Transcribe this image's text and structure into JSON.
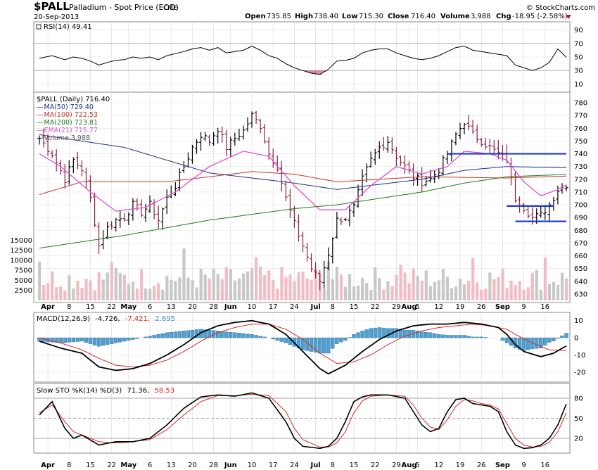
{
  "header": {
    "symbol": "$PALL",
    "name": "Palladium - Spot Price (EOD)",
    "exchange": "CME",
    "date": "20-Sep-2013",
    "watermark": "© StockCharts.com",
    "open_label": "Open",
    "open": "735.85",
    "high_label": "High",
    "high": "738.40",
    "low_label": "Low",
    "low": "715.30",
    "close_label": "Close",
    "close": "716.40",
    "volume_label": "Volume",
    "volume": "3,988",
    "chg_label": "Chg",
    "chg": "-18.95 (-2.58%)"
  },
  "rsi": {
    "label": "RSI(14) 49.41",
    "ticks": [
      "90",
      "70",
      "50",
      "30",
      "10"
    ],
    "tick_values": [
      90,
      70,
      50,
      30,
      10
    ]
  },
  "price": {
    "label": "$PALL (Daily) 716.40",
    "legend": [
      {
        "text": "MA(50) 729.40",
        "color": "#1f2f8f"
      },
      {
        "text": "MA(100) 722.53",
        "color": "#c0392b"
      },
      {
        "text": "MA(200) 723.81",
        "color": "#1e7a1e"
      },
      {
        "text": "EMA(21) 715.77",
        "color": "#e04fd0"
      },
      {
        "text": "Volume 3,988",
        "color": "#555555"
      }
    ],
    "ticks": [
      "780",
      "770",
      "760",
      "750",
      "740",
      "730",
      "720",
      "710",
      "700",
      "690",
      "680",
      "670",
      "660",
      "650",
      "640",
      "630"
    ],
    "tick_values": [
      780,
      770,
      760,
      750,
      740,
      730,
      720,
      710,
      700,
      690,
      680,
      670,
      660,
      650,
      640,
      630
    ],
    "vol_ticks": [
      "15000",
      "12500",
      "10000",
      "7500",
      "5000",
      "2500"
    ],
    "vol_tick_values": [
      15000,
      12500,
      10000,
      7500,
      5000,
      2500
    ]
  },
  "macd": {
    "label_name": "MACD(12,26,9)",
    "macd_value": "-4.726,",
    "signal_value": "-7.421,",
    "hist_value": "2.695",
    "ticks": [
      "10",
      "0",
      "-10",
      "-20"
    ],
    "tick_values": [
      10,
      0,
      -10,
      -20
    ]
  },
  "sto": {
    "label_name": "Slow STO %K(14) %D(3)",
    "k_value": "71.36,",
    "d_value": "58.53",
    "ticks": [
      "80",
      "50",
      "20"
    ],
    "tick_values": [
      80,
      50,
      20
    ]
  },
  "x_axis": {
    "labels": [
      {
        "text": "Apr",
        "bold": true,
        "i": 2
      },
      {
        "text": "8",
        "i": 7
      },
      {
        "text": "15",
        "i": 12
      },
      {
        "text": "22",
        "i": 17
      },
      {
        "text": "May",
        "bold": true,
        "i": 21
      },
      {
        "text": "6",
        "i": 26
      },
      {
        "text": "13",
        "i": 31
      },
      {
        "text": "20",
        "i": 36
      },
      {
        "text": "28",
        "i": 41
      },
      {
        "text": "Jun",
        "bold": true,
        "i": 45
      },
      {
        "text": "10",
        "i": 50
      },
      {
        "text": "17",
        "i": 55
      },
      {
        "text": "24",
        "i": 60
      },
      {
        "text": "Jul",
        "bold": true,
        "i": 65
      },
      {
        "text": "8",
        "i": 69
      },
      {
        "text": "15",
        "i": 74
      },
      {
        "text": "22",
        "i": 79
      },
      {
        "text": "29",
        "i": 84
      },
      {
        "text": "Aug",
        "bold": true,
        "i": 87
      },
      {
        "text": "5",
        "i": 89
      },
      {
        "text": "12",
        "i": 94
      },
      {
        "text": "19",
        "i": 99
      },
      {
        "text": "26",
        "i": 104
      },
      {
        "text": "Sep",
        "bold": true,
        "i": 109
      },
      {
        "text": "9",
        "i": 114
      },
      {
        "text": "16",
        "i": 119
      }
    ]
  },
  "chart_data": {
    "type": "line",
    "title": "$PALL Palladium - Spot Price (EOD) CME",
    "n_bars": 125,
    "price_range": [
      625,
      785
    ],
    "price_key_points": [
      [
        0,
        752
      ],
      [
        3,
        740
      ],
      [
        6,
        720
      ],
      [
        8,
        735
      ],
      [
        10,
        728
      ],
      [
        12,
        705
      ],
      [
        14,
        668
      ],
      [
        16,
        682
      ],
      [
        18,
        688
      ],
      [
        20,
        690
      ],
      [
        22,
        700
      ],
      [
        24,
        694
      ],
      [
        26,
        700
      ],
      [
        28,
        688
      ],
      [
        30,
        705
      ],
      [
        32,
        715
      ],
      [
        34,
        730
      ],
      [
        36,
        745
      ],
      [
        38,
        755
      ],
      [
        40,
        750
      ],
      [
        42,
        760
      ],
      [
        44,
        745
      ],
      [
        46,
        752
      ],
      [
        48,
        758
      ],
      [
        50,
        770
      ],
      [
        52,
        762
      ],
      [
        54,
        740
      ],
      [
        56,
        730
      ],
      [
        58,
        705
      ],
      [
        60,
        685
      ],
      [
        62,
        668
      ],
      [
        64,
        650
      ],
      [
        66,
        640
      ],
      [
        68,
        662
      ],
      [
        70,
        688
      ],
      [
        72,
        690
      ],
      [
        74,
        698
      ],
      [
        76,
        720
      ],
      [
        78,
        735
      ],
      [
        80,
        745
      ],
      [
        82,
        750
      ],
      [
        84,
        738
      ],
      [
        86,
        730
      ],
      [
        88,
        722
      ],
      [
        90,
        718
      ],
      [
        92,
        720
      ],
      [
        94,
        728
      ],
      [
        96,
        740
      ],
      [
        98,
        755
      ],
      [
        100,
        765
      ],
      [
        102,
        755
      ],
      [
        104,
        750
      ],
      [
        106,
        745
      ],
      [
        108,
        740
      ],
      [
        110,
        735
      ],
      [
        112,
        705
      ],
      [
        114,
        698
      ],
      [
        116,
        690
      ],
      [
        118,
        692
      ],
      [
        120,
        700
      ],
      [
        122,
        712
      ],
      [
        124,
        716
      ]
    ],
    "ma50_key_points": [
      [
        0,
        755
      ],
      [
        20,
        745
      ],
      [
        40,
        725
      ],
      [
        60,
        717
      ],
      [
        70,
        712
      ],
      [
        80,
        716
      ],
      [
        90,
        720
      ],
      [
        100,
        727
      ],
      [
        110,
        730
      ],
      [
        124,
        729
      ]
    ],
    "ma100_key_points": [
      [
        0,
        708
      ],
      [
        10,
        718
      ],
      [
        30,
        718
      ],
      [
        50,
        726
      ],
      [
        60,
        724
      ],
      [
        70,
        718
      ],
      [
        80,
        720
      ],
      [
        90,
        722
      ],
      [
        110,
        721
      ],
      [
        124,
        722.5
      ]
    ],
    "ma200_key_points": [
      [
        0,
        666
      ],
      [
        20,
        676
      ],
      [
        40,
        688
      ],
      [
        60,
        697
      ],
      [
        70,
        700
      ],
      [
        80,
        705
      ],
      [
        90,
        710
      ],
      [
        100,
        717
      ],
      [
        110,
        722
      ],
      [
        124,
        723.8
      ]
    ],
    "ema21_key_points": [
      [
        0,
        740
      ],
      [
        5,
        730
      ],
      [
        12,
        710
      ],
      [
        18,
        695
      ],
      [
        25,
        698
      ],
      [
        32,
        710
      ],
      [
        40,
        730
      ],
      [
        48,
        742
      ],
      [
        54,
        738
      ],
      [
        60,
        715
      ],
      [
        66,
        696
      ],
      [
        72,
        696
      ],
      [
        78,
        715
      ],
      [
        84,
        730
      ],
      [
        90,
        724
      ],
      [
        96,
        730
      ],
      [
        100,
        742
      ],
      [
        106,
        740
      ],
      [
        110,
        735
      ],
      [
        114,
        718
      ],
      [
        118,
        707
      ],
      [
        122,
        712
      ],
      [
        124,
        715.8
      ]
    ],
    "horizontal_lines": [
      {
        "y": 740,
        "from": 96,
        "to": 124,
        "color": "#1d3ecf"
      },
      {
        "y": 699,
        "from": 110,
        "to": 121,
        "color": "#1d3ecf"
      },
      {
        "y": 687,
        "from": 112,
        "to": 124,
        "color": "#1d3ecf"
      }
    ],
    "volume_range": [
      0,
      17000
    ],
    "rsi_range": [
      0,
      100
    ],
    "rsi_key_points": [
      [
        0,
        48
      ],
      [
        3,
        52
      ],
      [
        6,
        46
      ],
      [
        8,
        50
      ],
      [
        10,
        48
      ],
      [
        12,
        44
      ],
      [
        14,
        38
      ],
      [
        16,
        42
      ],
      [
        18,
        45
      ],
      [
        20,
        46
      ],
      [
        22,
        50
      ],
      [
        24,
        48
      ],
      [
        26,
        50
      ],
      [
        28,
        46
      ],
      [
        30,
        52
      ],
      [
        32,
        55
      ],
      [
        34,
        58
      ],
      [
        36,
        62
      ],
      [
        38,
        64
      ],
      [
        40,
        60
      ],
      [
        42,
        64
      ],
      [
        44,
        56
      ],
      [
        46,
        58
      ],
      [
        48,
        60
      ],
      [
        50,
        66
      ],
      [
        52,
        60
      ],
      [
        54,
        52
      ],
      [
        56,
        48
      ],
      [
        58,
        40
      ],
      [
        60,
        34
      ],
      [
        62,
        30
      ],
      [
        64,
        26
      ],
      [
        66,
        24
      ],
      [
        68,
        32
      ],
      [
        70,
        44
      ],
      [
        72,
        45
      ],
      [
        74,
        48
      ],
      [
        76,
        56
      ],
      [
        78,
        60
      ],
      [
        80,
        62
      ],
      [
        82,
        62
      ],
      [
        84,
        56
      ],
      [
        86,
        52
      ],
      [
        88,
        48
      ],
      [
        90,
        46
      ],
      [
        92,
        48
      ],
      [
        94,
        52
      ],
      [
        96,
        58
      ],
      [
        98,
        64
      ],
      [
        100,
        66
      ],
      [
        102,
        60
      ],
      [
        104,
        58
      ],
      [
        106,
        56
      ],
      [
        108,
        54
      ],
      [
        110,
        52
      ],
      [
        112,
        38
      ],
      [
        114,
        34
      ],
      [
        116,
        30
      ],
      [
        118,
        34
      ],
      [
        120,
        42
      ],
      [
        122,
        62
      ],
      [
        124,
        49.4
      ]
    ],
    "macd_range": [
      -25,
      14
    ],
    "macd_key_points": [
      [
        0,
        -2
      ],
      [
        5,
        -6
      ],
      [
        10,
        -9
      ],
      [
        14,
        -17
      ],
      [
        18,
        -19
      ],
      [
        22,
        -18
      ],
      [
        26,
        -15
      ],
      [
        30,
        -10
      ],
      [
        34,
        -4
      ],
      [
        38,
        3
      ],
      [
        42,
        7
      ],
      [
        46,
        9
      ],
      [
        50,
        10
      ],
      [
        54,
        8
      ],
      [
        58,
        2
      ],
      [
        62,
        -8
      ],
      [
        66,
        -18
      ],
      [
        68,
        -21
      ],
      [
        72,
        -16
      ],
      [
        76,
        -8
      ],
      [
        80,
        -1
      ],
      [
        84,
        4
      ],
      [
        88,
        7
      ],
      [
        92,
        8
      ],
      [
        96,
        8
      ],
      [
        100,
        9
      ],
      [
        104,
        8
      ],
      [
        108,
        6
      ],
      [
        110,
        2
      ],
      [
        112,
        -4
      ],
      [
        114,
        -8
      ],
      [
        118,
        -11
      ],
      [
        121,
        -9
      ],
      [
        124,
        -4.7
      ]
    ],
    "signal_key_points": [
      [
        0,
        0
      ],
      [
        5,
        -3
      ],
      [
        10,
        -7
      ],
      [
        14,
        -12
      ],
      [
        18,
        -16
      ],
      [
        22,
        -17
      ],
      [
        26,
        -16
      ],
      [
        30,
        -13
      ],
      [
        34,
        -8
      ],
      [
        38,
        -2
      ],
      [
        42,
        3
      ],
      [
        46,
        6
      ],
      [
        50,
        8
      ],
      [
        54,
        8
      ],
      [
        58,
        5
      ],
      [
        62,
        -1
      ],
      [
        66,
        -9
      ],
      [
        70,
        -15
      ],
      [
        74,
        -14
      ],
      [
        78,
        -10
      ],
      [
        82,
        -4
      ],
      [
        86,
        1
      ],
      [
        90,
        4
      ],
      [
        94,
        6
      ],
      [
        98,
        7
      ],
      [
        102,
        8
      ],
      [
        106,
        7
      ],
      [
        110,
        5
      ],
      [
        112,
        2
      ],
      [
        116,
        -3
      ],
      [
        120,
        -7
      ],
      [
        124,
        -7.4
      ]
    ],
    "sto_range": [
      0,
      100
    ],
    "sto_k_key_points": [
      [
        0,
        55
      ],
      [
        3,
        75
      ],
      [
        6,
        35
      ],
      [
        8,
        20
      ],
      [
        10,
        25
      ],
      [
        14,
        10
      ],
      [
        18,
        15
      ],
      [
        22,
        15
      ],
      [
        26,
        20
      ],
      [
        30,
        40
      ],
      [
        34,
        65
      ],
      [
        38,
        82
      ],
      [
        42,
        85
      ],
      [
        46,
        83
      ],
      [
        50,
        88
      ],
      [
        54,
        80
      ],
      [
        58,
        45
      ],
      [
        60,
        20
      ],
      [
        62,
        8
      ],
      [
        66,
        5
      ],
      [
        68,
        8
      ],
      [
        70,
        20
      ],
      [
        72,
        45
      ],
      [
        74,
        75
      ],
      [
        76,
        82
      ],
      [
        78,
        85
      ],
      [
        82,
        85
      ],
      [
        86,
        80
      ],
      [
        88,
        60
      ],
      [
        90,
        40
      ],
      [
        92,
        30
      ],
      [
        94,
        35
      ],
      [
        96,
        60
      ],
      [
        98,
        78
      ],
      [
        100,
        80
      ],
      [
        102,
        72
      ],
      [
        104,
        70
      ],
      [
        106,
        68
      ],
      [
        108,
        60
      ],
      [
        110,
        30
      ],
      [
        112,
        10
      ],
      [
        114,
        5
      ],
      [
        116,
        6
      ],
      [
        118,
        10
      ],
      [
        120,
        20
      ],
      [
        122,
        40
      ],
      [
        124,
        71.4
      ]
    ],
    "sto_d_key_points": [
      [
        0,
        58
      ],
      [
        3,
        70
      ],
      [
        6,
        45
      ],
      [
        8,
        30
      ],
      [
        10,
        25
      ],
      [
        14,
        15
      ],
      [
        18,
        13
      ],
      [
        22,
        15
      ],
      [
        26,
        18
      ],
      [
        30,
        33
      ],
      [
        34,
        55
      ],
      [
        38,
        75
      ],
      [
        42,
        84
      ],
      [
        46,
        84
      ],
      [
        50,
        86
      ],
      [
        54,
        84
      ],
      [
        58,
        60
      ],
      [
        60,
        35
      ],
      [
        62,
        18
      ],
      [
        66,
        7
      ],
      [
        68,
        7
      ],
      [
        70,
        13
      ],
      [
        72,
        30
      ],
      [
        74,
        58
      ],
      [
        76,
        76
      ],
      [
        78,
        83
      ],
      [
        82,
        85
      ],
      [
        86,
        83
      ],
      [
        88,
        70
      ],
      [
        90,
        50
      ],
      [
        92,
        37
      ],
      [
        94,
        33
      ],
      [
        96,
        48
      ],
      [
        98,
        68
      ],
      [
        100,
        78
      ],
      [
        102,
        76
      ],
      [
        104,
        72
      ],
      [
        106,
        70
      ],
      [
        108,
        64
      ],
      [
        110,
        42
      ],
      [
        112,
        20
      ],
      [
        114,
        10
      ],
      [
        116,
        7
      ],
      [
        118,
        8
      ],
      [
        120,
        14
      ],
      [
        122,
        30
      ],
      [
        124,
        58.5
      ]
    ]
  }
}
